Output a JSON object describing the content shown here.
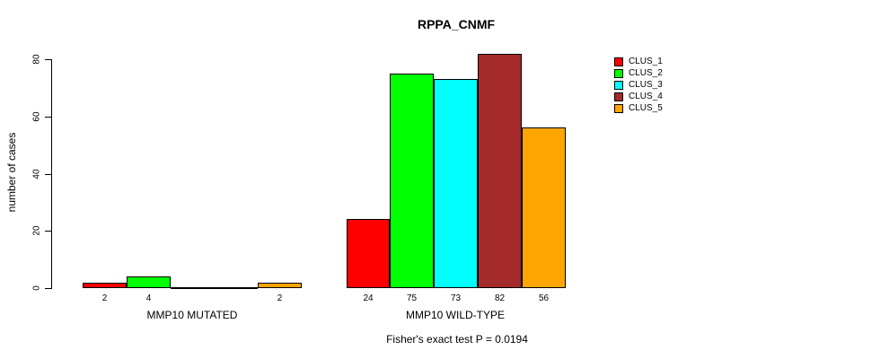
{
  "chart_data": {
    "type": "bar",
    "title": "RPPA_CNMF",
    "subtitle": "Fisher's exact test P = 0.0194",
    "ylabel": "number of cases",
    "xlabel": "",
    "ylim": [
      0,
      80
    ],
    "yticks": [
      0,
      20,
      40,
      60,
      80
    ],
    "grid": false,
    "legend_position": "right-inside",
    "categories": [
      "MMP10 MUTATED",
      "MMP10 WILD-TYPE"
    ],
    "series": [
      {
        "name": "CLUS_1",
        "color": "#ff0000",
        "values": [
          2,
          24
        ]
      },
      {
        "name": "CLUS_2",
        "color": "#00ff00",
        "values": [
          4,
          75
        ]
      },
      {
        "name": "CLUS_3",
        "color": "#00ffff",
        "values": [
          0,
          73
        ]
      },
      {
        "name": "CLUS_4",
        "color": "#a52a2a",
        "values": [
          0,
          82
        ]
      },
      {
        "name": "CLUS_5",
        "color": "#ffa500",
        "values": [
          2,
          56
        ]
      }
    ],
    "bar_value_labels": [
      [
        "2",
        "4",
        "",
        "",
        "2"
      ],
      [
        "24",
        "75",
        "73",
        "82",
        "56"
      ]
    ],
    "axis_color": "#000000",
    "text_color": "#000000",
    "background": "#ffffff"
  }
}
